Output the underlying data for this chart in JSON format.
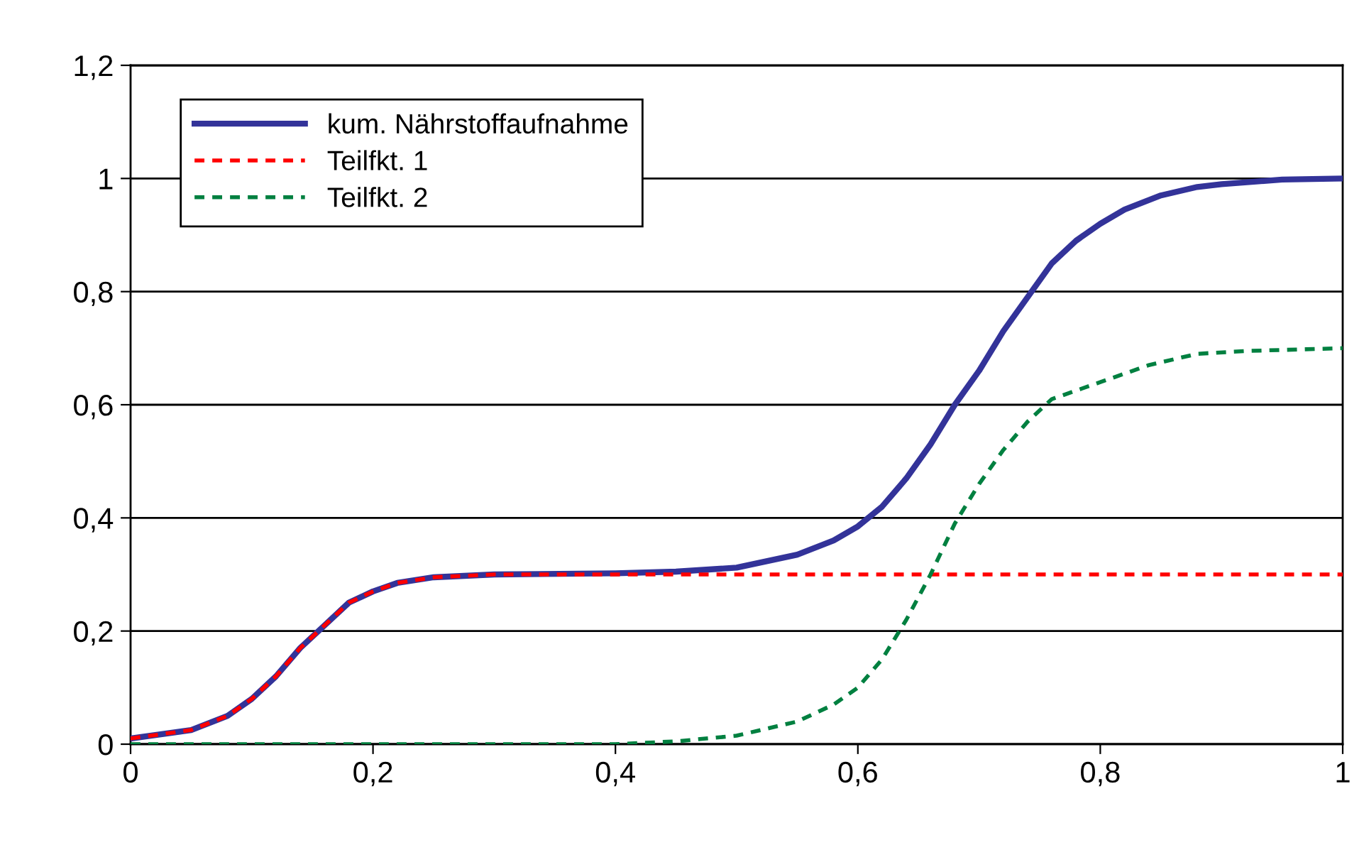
{
  "chart_data": {
    "type": "line",
    "xlim": [
      0,
      1
    ],
    "ylim": [
      0,
      1.2
    ],
    "xticks": [
      {
        "value": 0,
        "label": "0"
      },
      {
        "value": 0.2,
        "label": "0,2"
      },
      {
        "value": 0.4,
        "label": "0,4"
      },
      {
        "value": 0.6,
        "label": "0,6"
      },
      {
        "value": 0.8,
        "label": "0,8"
      },
      {
        "value": 1,
        "label": "1"
      }
    ],
    "yticks": [
      {
        "value": 0,
        "label": "0"
      },
      {
        "value": 0.2,
        "label": "0,2"
      },
      {
        "value": 0.4,
        "label": "0,4"
      },
      {
        "value": 0.6,
        "label": "0,6"
      },
      {
        "value": 0.8,
        "label": "0,8"
      },
      {
        "value": 1,
        "label": "1"
      },
      {
        "value": 1.2,
        "label": "1,2"
      }
    ],
    "grid": "y",
    "legend": "top left",
    "marker": "none",
    "series": [
      {
        "name": "kum. Nährstoffaufnahme",
        "color": "#333399",
        "line_style": "solid",
        "x": [
          0,
          0.05,
          0.08,
          0.1,
          0.12,
          0.14,
          0.16,
          0.18,
          0.2,
          0.22,
          0.25,
          0.3,
          0.4,
          0.45,
          0.5,
          0.55,
          0.58,
          0.6,
          0.62,
          0.64,
          0.66,
          0.68,
          0.7,
          0.72,
          0.74,
          0.76,
          0.78,
          0.8,
          0.82,
          0.85,
          0.88,
          0.9,
          0.95,
          1
        ],
        "values": [
          0.01,
          0.025,
          0.05,
          0.08,
          0.12,
          0.17,
          0.21,
          0.25,
          0.27,
          0.285,
          0.295,
          0.3,
          0.302,
          0.305,
          0.312,
          0.335,
          0.36,
          0.385,
          0.42,
          0.47,
          0.53,
          0.6,
          0.66,
          0.73,
          0.79,
          0.85,
          0.89,
          0.92,
          0.945,
          0.97,
          0.985,
          0.99,
          0.998,
          1.0
        ]
      },
      {
        "name": "Teilfkt. 1",
        "color": "#ff0000",
        "line_style": "dashed",
        "x": [
          0,
          0.05,
          0.08,
          0.1,
          0.12,
          0.14,
          0.16,
          0.18,
          0.2,
          0.22,
          0.25,
          0.3,
          1
        ],
        "values": [
          0.01,
          0.025,
          0.05,
          0.08,
          0.12,
          0.17,
          0.21,
          0.25,
          0.27,
          0.285,
          0.295,
          0.3,
          0.3
        ]
      },
      {
        "name": "Teilfkt. 2",
        "color": "#008040",
        "line_style": "dashed",
        "x": [
          0,
          0.4,
          0.45,
          0.5,
          0.55,
          0.58,
          0.6,
          0.62,
          0.64,
          0.66,
          0.68,
          0.7,
          0.72,
          0.74,
          0.76,
          0.8,
          0.84,
          0.88,
          0.92,
          1
        ],
        "values": [
          0,
          0,
          0.005,
          0.015,
          0.04,
          0.07,
          0.1,
          0.15,
          0.22,
          0.3,
          0.39,
          0.46,
          0.52,
          0.57,
          0.61,
          0.64,
          0.67,
          0.69,
          0.695,
          0.7
        ]
      }
    ]
  }
}
